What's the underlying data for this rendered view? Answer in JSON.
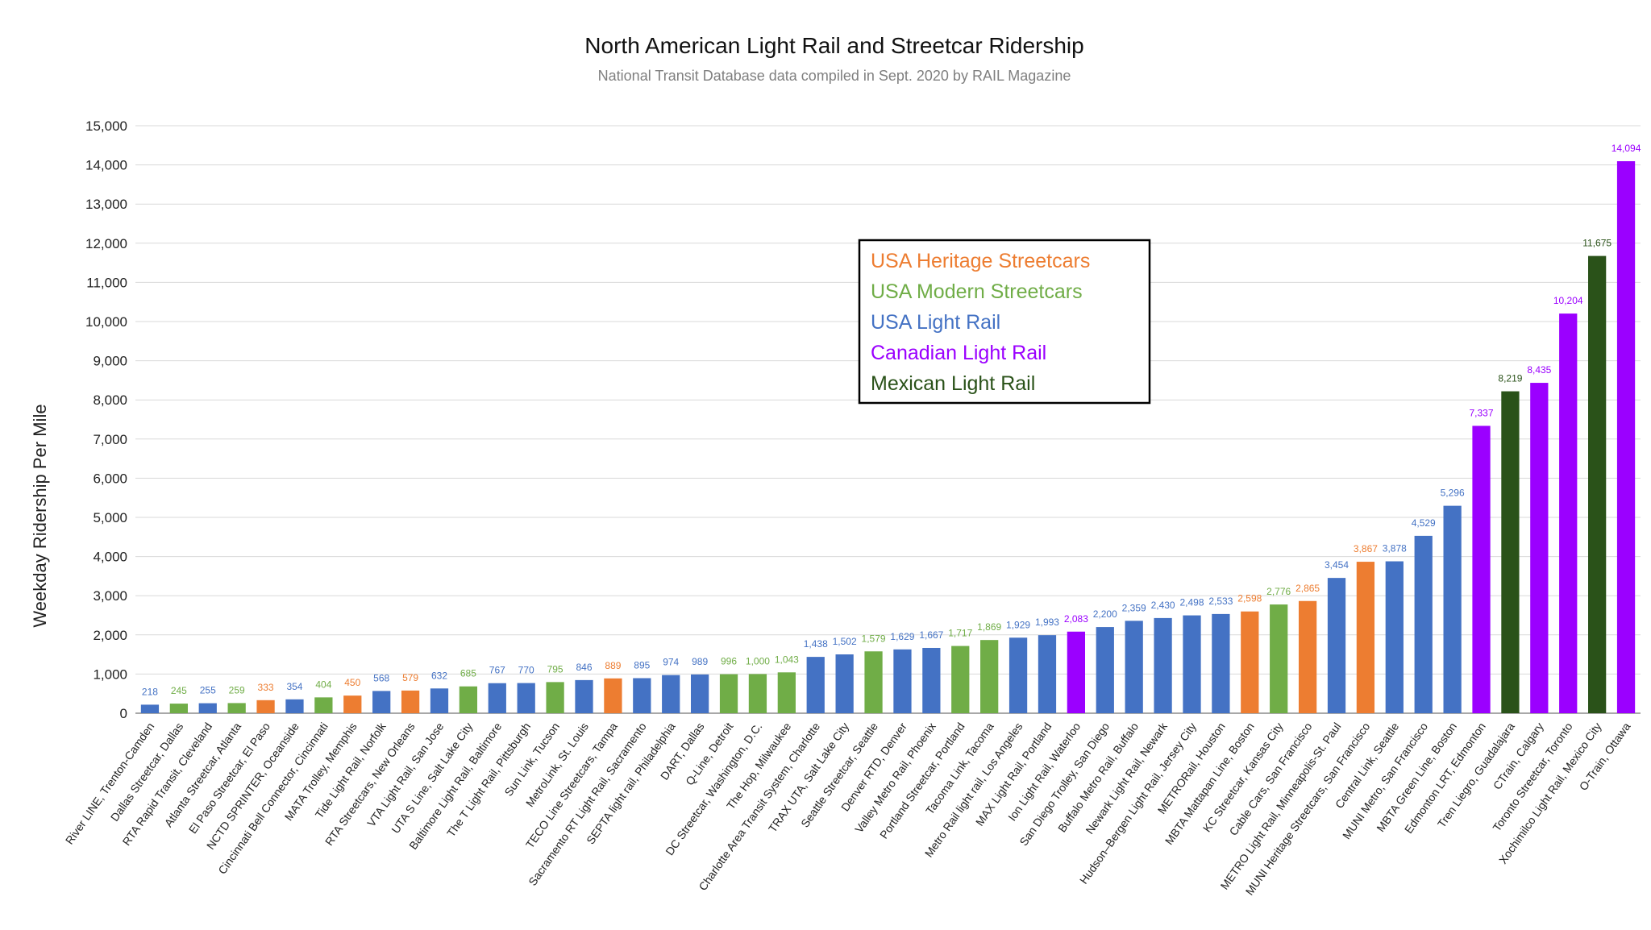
{
  "chart_data": {
    "type": "bar",
    "title": "North American Light Rail and Streetcar Ridership",
    "subtitle": "National Transit Database data compiled in Sept. 2020 by RAIL Magazine",
    "xlabel": "",
    "ylabel": "Weekday Ridership Per Mile",
    "ylim": [
      0,
      15000
    ],
    "yticks": [
      0,
      1000,
      2000,
      3000,
      4000,
      5000,
      6000,
      7000,
      8000,
      9000,
      10000,
      11000,
      12000,
      13000,
      14000,
      15000
    ],
    "grid": true,
    "legend_position": "center",
    "colors": {
      "heritage": "#ED7D31",
      "modern": "#70AD47",
      "usa_lr": "#4472C4",
      "canada": "#9B00FF",
      "mexico": "#2A5219"
    },
    "legend": [
      {
        "key": "heritage",
        "label": "USA Heritage Streetcars"
      },
      {
        "key": "modern",
        "label": "USA Modern Streetcars"
      },
      {
        "key": "usa_lr",
        "label": "USA Light Rail"
      },
      {
        "key": "canada",
        "label": "Canadian Light Rail"
      },
      {
        "key": "mexico",
        "label": "Mexican Light Rail"
      }
    ],
    "categories": [
      "River LINE, Trenton-Camden",
      "Dallas Streetcar, Dallas",
      "RTA Rapid Transit, Cleveland",
      "Atlanta Streetcar, Atlanta",
      "El Paso Streetcar, El Paso",
      "NCTD SPRINTER, Oceanside",
      "Cincinnati Bell Connector, Cincinnati",
      "MATA Trolley, Memphis",
      "Tide Light Rail, Norfolk",
      "RTA Streetcars, New Orleans",
      "VTA Light Rail, San Jose",
      "UTA S Line, Salt Lake City",
      "Baltimore Light Rail, Baltimore",
      "The T Light Rail, Pittsburgh",
      "Sun Link, Tucson",
      "MetroLink, St. Louis",
      "TECO Line Streetcars, Tampa",
      "Sacramento RT Light Rail, Sacramento",
      "SEPTA light rail, Philadelphia",
      "DART, Dallas",
      "Q-Line, Detroit",
      "DC Streetcar, Washington, D.C.",
      "The Hop, Milwaukee",
      "Charlotte Area Transit System, Charlotte",
      "TRAX UTA, Salt Lake City",
      "Seattle Streetcar, Seattle",
      "Denver RTD, Denver",
      "Valley Metro Rail, Phoenix",
      "Portland Streetcar, Portland",
      "Tacoma Link, Tacoma",
      "Metro Rail light rail, Los Angeles",
      "MAX Light Rail, Portland",
      "Ion Light Rail, Waterloo",
      "San Diego Trolley, San Diego",
      "Buffalo Metro Rail, Buffalo",
      "Newark Light Rail, Newark",
      "Hudson–Bergen Light Rail, Jersey City",
      "METRORail, Houston",
      "MBTA Mattapan Line, Boston",
      "KC Streetcar, Kansas City",
      "Cable Cars, San Francisco",
      "METRO Light Rail, Minneapolis-St. Paul",
      "MUNI Heritage Streetcars, San Francisco",
      "Central Link, Seattle",
      "MUNI Metro, San Francisco",
      "MBTA Green Line, Boston",
      "Edmonton LRT, Edmonton",
      "Tren Liegro, Guadalajara",
      "CTrain, Calgary",
      "Toronto Streetcar, Toronto",
      "Xochimilco Light Rail, Mexico City",
      "O-Train, Ottawa"
    ],
    "values": [
      218,
      245,
      255,
      259,
      333,
      354,
      404,
      450,
      568,
      579,
      632,
      685,
      767,
      770,
      795,
      846,
      889,
      895,
      974,
      989,
      996,
      1000,
      1043,
      1438,
      1502,
      1579,
      1629,
      1667,
      1717,
      1869,
      1929,
      1993,
      2083,
      2200,
      2359,
      2430,
      2498,
      2533,
      2598,
      2776,
      2865,
      3454,
      3867,
      3878,
      4529,
      5296,
      7337,
      8219,
      8435,
      10204,
      11675,
      14094
    ],
    "value_labels": [
      "218",
      "245",
      "255",
      "259",
      "333",
      "354",
      "404",
      "450",
      "568",
      "579",
      "632",
      "685",
      "767",
      "770",
      "795",
      "846",
      "889",
      "895",
      "974",
      "989",
      "996",
      "1,000",
      "1,043",
      "1,438",
      "1,502",
      "1,579",
      "1,629",
      "1,667",
      "1,717",
      "1,869",
      "1,929",
      "1,993",
      "2,083",
      "2,200",
      "2,359",
      "2,430",
      "2,498",
      "2,533",
      "2,598",
      "2,776",
      "2,865",
      "3,454",
      "3,867",
      "3,878",
      "4,529",
      "5,296",
      "7,337",
      "8,219",
      "8,435",
      "10,204",
      "11,675",
      "14,094"
    ],
    "group": [
      "usa_lr",
      "modern",
      "usa_lr",
      "modern",
      "heritage",
      "usa_lr",
      "modern",
      "heritage",
      "usa_lr",
      "heritage",
      "usa_lr",
      "modern",
      "usa_lr",
      "usa_lr",
      "modern",
      "usa_lr",
      "heritage",
      "usa_lr",
      "usa_lr",
      "usa_lr",
      "modern",
      "modern",
      "modern",
      "usa_lr",
      "usa_lr",
      "modern",
      "usa_lr",
      "usa_lr",
      "modern",
      "modern",
      "usa_lr",
      "usa_lr",
      "canada",
      "usa_lr",
      "usa_lr",
      "usa_lr",
      "usa_lr",
      "usa_lr",
      "heritage",
      "modern",
      "heritage",
      "usa_lr",
      "heritage",
      "usa_lr",
      "usa_lr",
      "usa_lr",
      "canada",
      "mexico",
      "canada",
      "canada",
      "mexico",
      "canada"
    ]
  }
}
